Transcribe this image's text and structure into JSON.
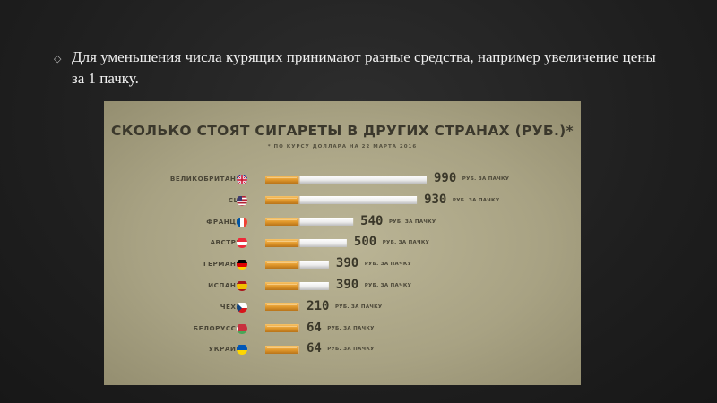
{
  "slide": {
    "bullet_icon": "diamond-bullet-icon",
    "text": "Для уменьшения числа курящих принимают разные средства, например увеличение цены за 1 пачку."
  },
  "chart_data": {
    "type": "bar",
    "title": "СКОЛЬКО СТОЯТ СИГАРЕТЫ В ДРУГИХ СТРАНАХ (РУБ.)*",
    "subtitle": "* ПО КУРСУ ДОЛЛАРА НА 22 МАРТА 2016",
    "unit_label": "РУБ. ЗА ПАЧКУ",
    "categories": [
      "ВЕЛИКОБРИТАНИЯ",
      "США",
      "ФРАНЦИЯ",
      "АВСТРИЯ",
      "ГЕРМАНИЯ",
      "ИСПАНИЯ",
      "ЧЕХИЯ",
      "БЕЛОРУССИЯ",
      "УКРАИНА"
    ],
    "values": [
      990,
      930,
      540,
      500,
      390,
      390,
      210,
      64,
      64
    ],
    "flags": [
      "uk-flag-icon",
      "usa-flag-icon",
      "france-flag-icon",
      "austria-flag-icon",
      "germany-flag-icon",
      "spain-flag-icon",
      "czech-flag-icon",
      "belarus-flag-icon",
      "ukraine-flag-icon"
    ],
    "bar_style": "cigarette",
    "colors": {
      "filter": "#e8a33a",
      "paper": "#f2f2f2",
      "panel": "#aea889",
      "text": "#3a3729"
    }
  }
}
